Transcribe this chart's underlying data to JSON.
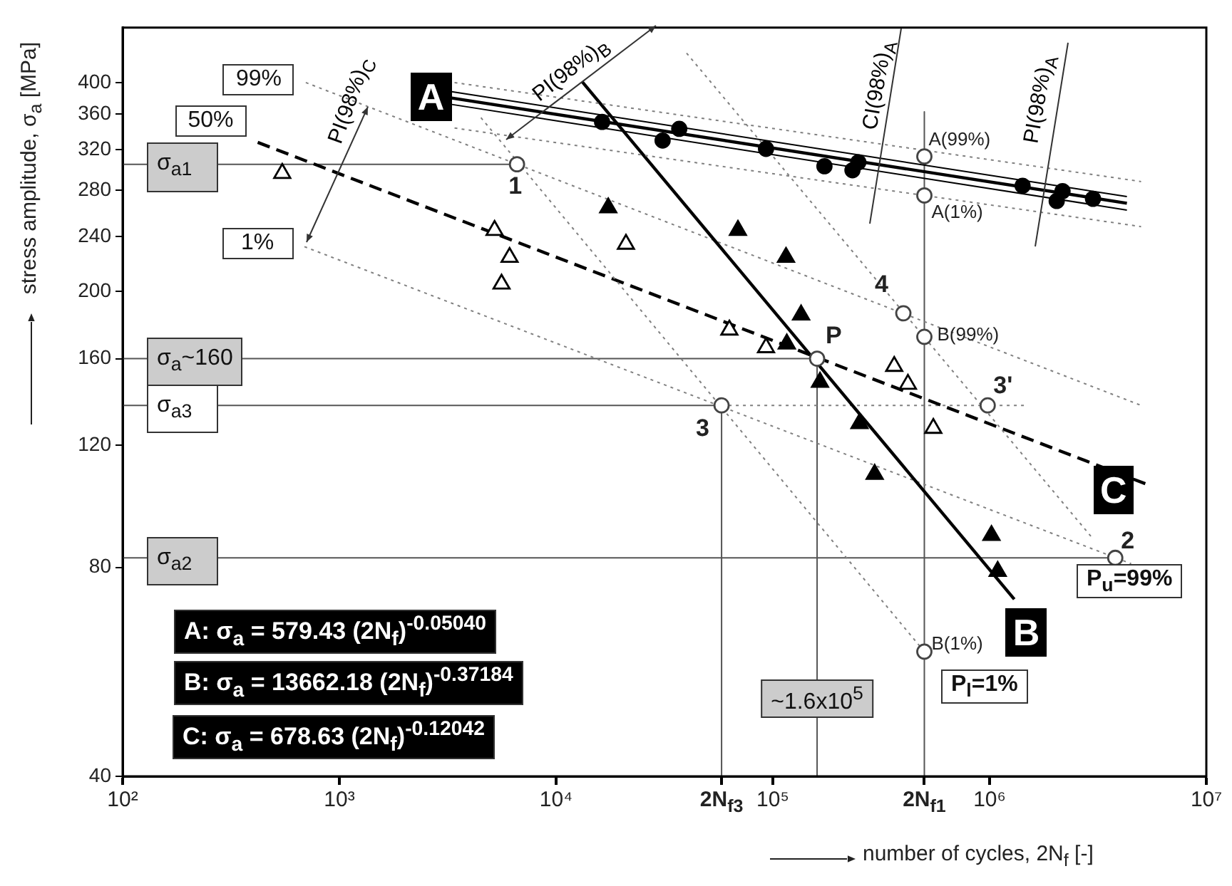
{
  "chart_data": {
    "type": "scatter",
    "log": "xy",
    "xlabel": "number of cycles, 2N$_{f}$ [-]",
    "ylabel": "stress amplitude, σ$_{a}$ [MPa]",
    "xlim": [
      100,
      10000000
    ],
    "ylim": [
      40,
      480
    ],
    "xticks": [
      {
        "value": 100,
        "label": "10²"
      },
      {
        "value": 1000,
        "label": "10³"
      },
      {
        "value": 10000,
        "label": "10⁴"
      },
      {
        "value": 58000,
        "label": "2N$_{f3}$"
      },
      {
        "value": 100000,
        "label": "10⁵"
      },
      {
        "value": 500000,
        "label": "2N$_{f1}$"
      },
      {
        "value": 1000000,
        "label": "10⁶"
      },
      {
        "value": 10000000,
        "label": "10⁷"
      }
    ],
    "yticks": [
      40,
      80,
      120,
      160,
      200,
      240,
      280,
      320,
      360,
      400
    ],
    "series": [
      {
        "type": "scatter",
        "marker": "circle",
        "color": "#000000",
        "x": [
          16300,
          31000,
          37000,
          93000,
          173000,
          233000,
          248000,
          1420000,
          2040000,
          2170000,
          3000000
        ],
        "values": [
          351,
          330,
          343,
          321,
          303,
          299,
          307,
          284,
          270,
          279,
          272
        ]
      },
      {
        "type": "scatter",
        "marker": "triangle",
        "color": "#000000",
        "x": [
          17400,
          69000,
          115000,
          116000,
          135000,
          165000,
          251000,
          295000,
          1020000,
          1090000
        ],
        "values": [
          264,
          245,
          224,
          168,
          185,
          148,
          129,
          109,
          89,
          79
        ]
      },
      {
        "type": "scatter",
        "marker": "triangle",
        "color": "#000000",
        "x": [
          545,
          5200,
          5600,
          6100,
          21000,
          63000,
          93000,
          363000,
          420000,
          550000
        ],
        "values": [
          296,
          245,
          205,
          224,
          234,
          176,
          166,
          156,
          147,
          127
        ]
      },
      {
        "type": "scatter",
        "marker": "circle",
        "color": "#444444",
        "x": [
          6600,
          3800000,
          58000,
          980000,
          400000,
          160000,
          500000,
          500000,
          500000,
          500000
        ],
        "values": [
          305,
          82.6,
          137,
          137,
          186,
          160,
          313,
          275,
          172,
          60.5
        ]
      },
      {
        "type": "line",
        "name": "A",
        "color": "#000000",
        "line_style": "solid",
        "x": [
          3300,
          4300000
        ],
        "values": [
          380,
          268
        ]
      },
      {
        "type": "line",
        "color": "#000000",
        "line_style": "solid",
        "x": [
          3300,
          4300000
        ],
        "values": [
          388,
          274
        ]
      },
      {
        "type": "line",
        "color": "#000000",
        "line_style": "solid",
        "x": [
          3300,
          4300000
        ],
        "values": [
          372,
          262
        ]
      },
      {
        "type": "line",
        "color": "#808080",
        "line_style": "dotted",
        "x": [
          3400,
          5000000
        ],
        "values": [
          400,
          288
        ]
      },
      {
        "type": "line",
        "color": "#808080",
        "line_style": "dotted",
        "x": [
          3400,
          5000000
        ],
        "values": [
          344,
          248
        ]
      },
      {
        "type": "line",
        "name": "B",
        "color": "#000000",
        "line_style": "solid",
        "x": [
          13200,
          1300000
        ],
        "values": [
          401,
          72
        ]
      },
      {
        "type": "line",
        "color": "#808080",
        "line_style": "dotted",
        "x": [
          40000,
          3000000
        ],
        "values": [
          441,
          88
        ]
      },
      {
        "type": "line",
        "color": "#808080",
        "line_style": "dotted",
        "x": [
          4500,
          500000
        ],
        "values": [
          356,
          60.5
        ]
      },
      {
        "type": "line",
        "name": "C",
        "color": "#000000",
        "line_style": "dashed",
        "x": [
          420,
          5500000
        ],
        "values": [
          328,
          105
        ]
      },
      {
        "type": "line",
        "color": "#808080",
        "line_style": "dotted",
        "x": [
          700,
          5000000
        ],
        "values": [
          400,
          137
        ]
      },
      {
        "type": "line",
        "color": "#808080",
        "line_style": "dotted",
        "x": [
          690,
          4500000
        ],
        "values": [
          232,
          81
        ]
      },
      {
        "type": "line",
        "color": "#555555",
        "line_style": "solid",
        "x": [
          100,
          6600
        ],
        "values": [
          305,
          305
        ]
      },
      {
        "type": "line",
        "color": "#555555",
        "line_style": "solid",
        "x": [
          100,
          160000
        ],
        "values": [
          160,
          160
        ]
      },
      {
        "type": "line",
        "color": "#555555",
        "line_style": "solid",
        "x": [
          100,
          58000
        ],
        "values": [
          137,
          137
        ]
      },
      {
        "type": "line",
        "color": "#808080",
        "line_style": "dotted",
        "x": [
          58000,
          1500000
        ],
        "values": [
          137,
          137
        ]
      },
      {
        "type": "line",
        "color": "#555555",
        "line_style": "solid",
        "x": [
          100,
          3800000
        ],
        "values": [
          82.6,
          82.6
        ]
      },
      {
        "type": "line",
        "color": "#555555",
        "line_style": "solid",
        "x": [
          58000,
          58000
        ],
        "values": [
          137,
          40
        ]
      },
      {
        "type": "line",
        "color": "#555555",
        "line_style": "solid",
        "x": [
          160000,
          160000
        ],
        "values": [
          160,
          40
        ]
      },
      {
        "type": "line",
        "color": "#555555",
        "line_style": "solid",
        "x": [
          500000,
          500000
        ],
        "values": [
          363,
          40
        ]
      }
    ],
    "annotations": [
      {
        "text": "1",
        "x": 6600,
        "y": 305
      },
      {
        "text": "2",
        "x": 3800000,
        "y": 82.6
      },
      {
        "text": "3",
        "x": 58000,
        "y": 137
      },
      {
        "text": "3'",
        "x": 980000,
        "y": 137
      },
      {
        "text": "4",
        "x": 400000,
        "y": 186
      },
      {
        "text": "P",
        "x": 160000,
        "y": 160
      },
      {
        "text": "A(99%)",
        "x": 500000,
        "y": 313
      },
      {
        "text": "A(1%)",
        "x": 500000,
        "y": 275
      },
      {
        "text": "B(99%)",
        "x": 500000,
        "y": 172
      },
      {
        "text": "B(1%)",
        "x": 500000,
        "y": 60.5
      },
      {
        "text": "99%",
        "x": 700,
        "y": 400
      },
      {
        "text": "50%",
        "x": 420,
        "y": 328
      },
      {
        "text": "1%",
        "x": 690,
        "y": 232
      },
      {
        "text": "σ$_{a1}$",
        "y": 305
      },
      {
        "text": "σ$_{a}$~160",
        "y": 160
      },
      {
        "text": "σ$_{a3}$",
        "y": 137
      },
      {
        "text": "σ$_{a2}$",
        "y": 82.6
      },
      {
        "text": "~1.6x10$^{5}$",
        "x": 160000
      },
      "P$_{u}$=99%",
      "P$_{l}$=1%",
      "A:   σ$_{a}$ = 579.43 (2N$_{f}$)$^{-0.05040}$",
      "B:   σ$_{a}$ = 13662.18 (2N$_{f}$)$^{-0.37184}$",
      "C:   σ$_{a}$ = 678.63  (2N$_{f}$)$^{-0.12042}$",
      {
        "text": "PI(98%)$_{C}$",
        "x": 980,
        "y": 292
      },
      {
        "text": "PI(98%)$_{B}$",
        "x": 12900,
        "y": 386
      },
      "CI(98%)$_{A}$",
      "PI(98%)$_{A}$"
    ]
  }
}
